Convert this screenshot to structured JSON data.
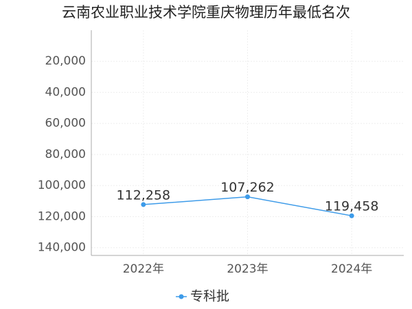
{
  "chart_data": {
    "type": "line",
    "title": "云南农业职业技术学院重庆物理历年最低名次",
    "categories": [
      "2022年",
      "2023年",
      "2024年"
    ],
    "series": [
      {
        "name": "专科批",
        "color": "#3d9be9",
        "values": [
          112258,
          107262,
          119458
        ],
        "value_labels": [
          "112,258",
          "107,262",
          "119,458"
        ]
      }
    ],
    "ylim": [
      0,
      145000
    ],
    "y_inverted": true,
    "yticks": [
      {
        "value": 20000,
        "label": "20,000"
      },
      {
        "value": 40000,
        "label": "40,000"
      },
      {
        "value": 60000,
        "label": "60,000"
      },
      {
        "value": 80000,
        "label": "80,000"
      },
      {
        "value": 100000,
        "label": "100,000"
      },
      {
        "value": 120000,
        "label": "120,000"
      },
      {
        "value": 140000,
        "label": "140,000"
      }
    ],
    "grid": true,
    "legend": "bottom"
  }
}
